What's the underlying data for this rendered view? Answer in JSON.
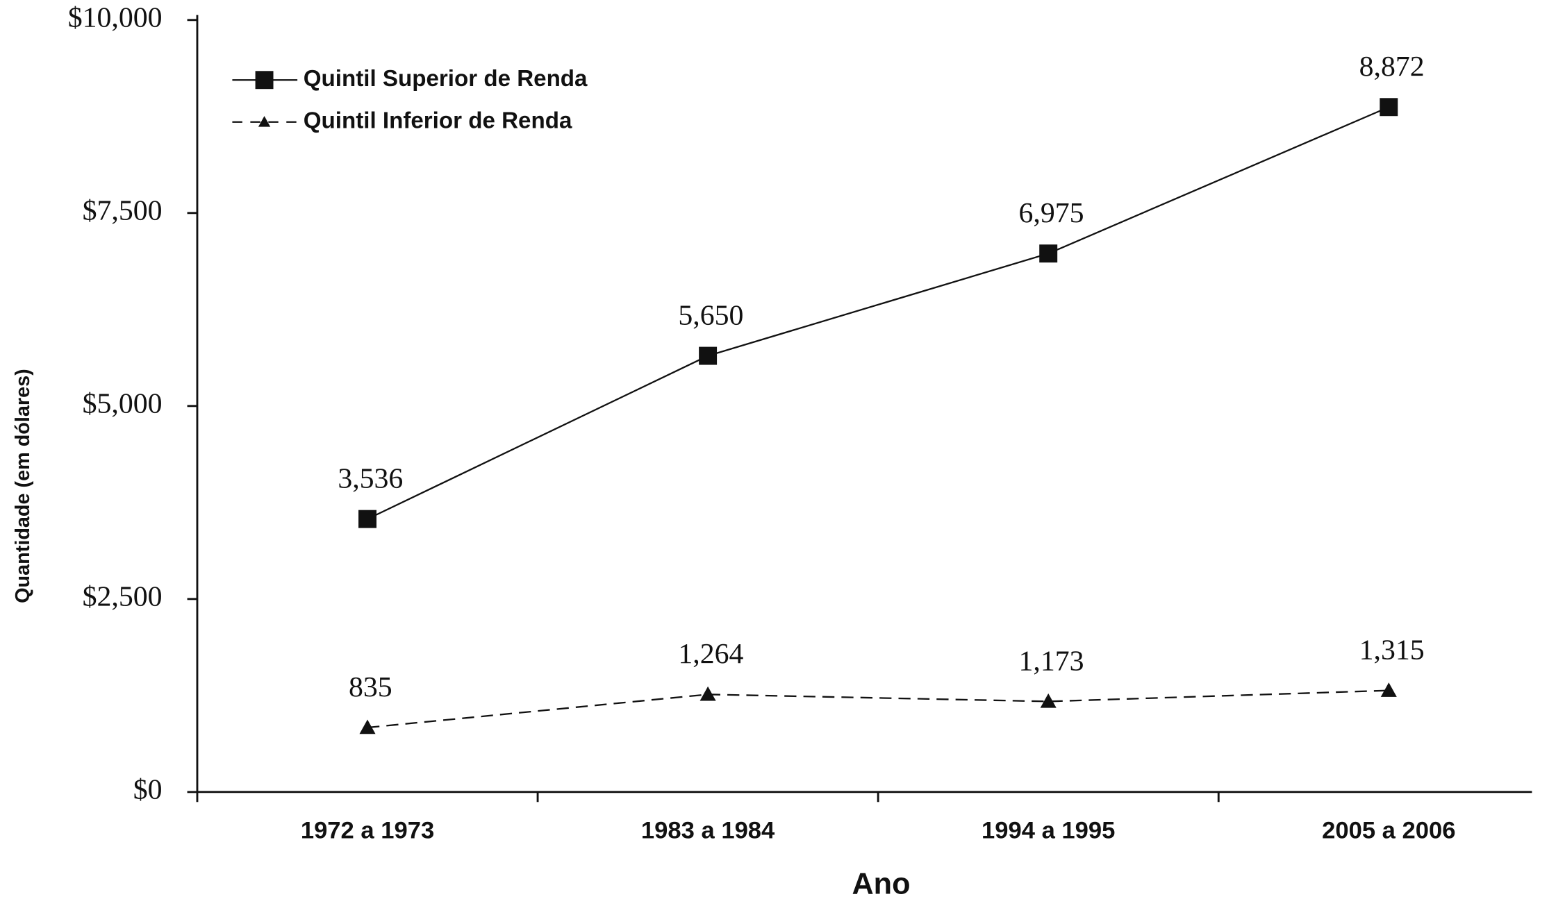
{
  "chart_data": {
    "type": "line",
    "x_label": "Ano",
    "y_label": "Quantidade (em dólares)",
    "categories": [
      "1972 a 1973",
      "1983 a 1984",
      "1994 a 1995",
      "2005 a 2006"
    ],
    "series": [
      {
        "name": "Quintil Superior de Renda",
        "color": "#111111",
        "marker": "square",
        "dash": false,
        "values": [
          3536,
          5650,
          6975,
          8872
        ],
        "value_labels": [
          "3,536",
          "5,650",
          "6,975",
          "8,872"
        ]
      },
      {
        "name": "Quintil Inferior de Renda",
        "color": "#111111",
        "marker": "triangle",
        "dash": true,
        "values": [
          835,
          1264,
          1173,
          1315
        ],
        "value_labels": [
          "835",
          "1,264",
          "1,173",
          "1,315"
        ]
      }
    ],
    "ylim": [
      0,
      10000
    ],
    "yticks": [
      {
        "value": 0,
        "label": "$0"
      },
      {
        "value": 2500,
        "label": "$2,500"
      },
      {
        "value": 5000,
        "label": "$5,000"
      },
      {
        "value": 7500,
        "label": "$7,500"
      },
      {
        "value": 10000,
        "label": "$10,000"
      }
    ],
    "legend": "upper left",
    "grid": false
  }
}
